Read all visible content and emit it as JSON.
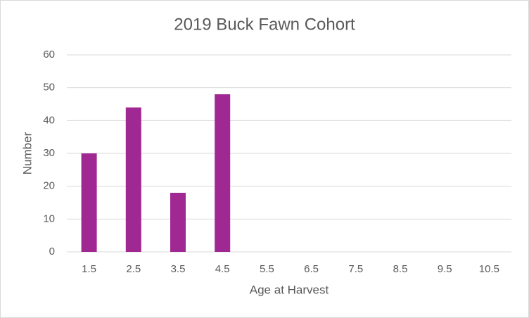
{
  "chart_data": {
    "type": "bar",
    "title": "2019 Buck Fawn Cohort",
    "x_label": "Age at Harvest",
    "y_label": "Number",
    "categories": [
      "1.5",
      "2.5",
      "3.5",
      "4.5",
      "5.5",
      "6.5",
      "7.5",
      "8.5",
      "9.5",
      "10.5"
    ],
    "values": [
      30,
      44,
      18,
      48,
      null,
      null,
      null,
      null,
      null,
      null
    ],
    "color": "#a02892",
    "ylim": [
      0,
      60
    ],
    "yticks": [
      0,
      10,
      20,
      30,
      40,
      50,
      60
    ],
    "grid": true
  }
}
